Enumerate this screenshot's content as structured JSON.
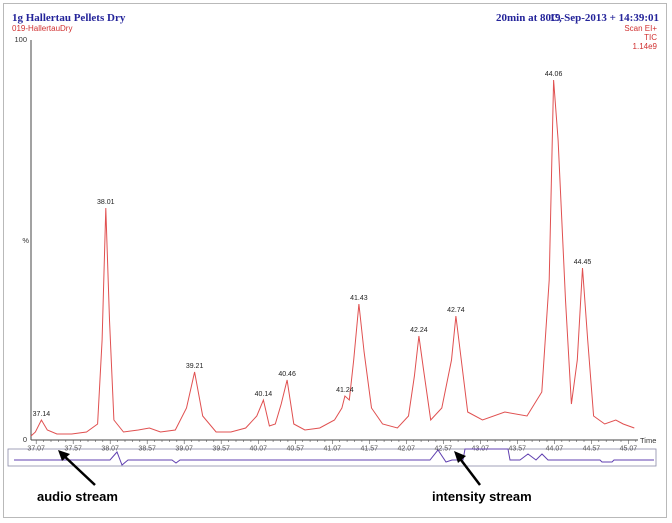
{
  "header": {
    "title": "1g Hallertau Pellets Dry",
    "method": "20min at 80C,",
    "datetime": "19-Sep-2013 + 14:39:01",
    "sample": "019-HallertauDry",
    "scan_mode": "Scan EI+",
    "trace": "TIC",
    "intensity": "1.14e9"
  },
  "axes": {
    "y_top": "100",
    "y_mid": "%",
    "y_zero": "0",
    "x_unit": "Time"
  },
  "annotations": {
    "audio": "audio stream",
    "intensity": "intensity stream"
  },
  "chart_data": {
    "type": "line",
    "xlabel": "Time",
    "ylabel": "%",
    "xlim": [
      37.0,
      45.2
    ],
    "ylim": [
      0,
      100
    ],
    "x_ticks": [
      "37.07",
      "37.57",
      "38.07",
      "38.57",
      "39.07",
      "39.57",
      "40.07",
      "40.57",
      "41.07",
      "41.57",
      "42.07",
      "42.57",
      "43.07",
      "43.57",
      "44.07",
      "44.57",
      "45.07"
    ],
    "x_tick_values": [
      37.07,
      37.57,
      38.07,
      38.57,
      39.07,
      39.57,
      40.07,
      40.57,
      41.07,
      41.57,
      42.07,
      42.57,
      43.07,
      43.57,
      44.07,
      44.57,
      45.07
    ],
    "peaks": [
      {
        "label": "37.14",
        "x": 37.14,
        "y": 5
      },
      {
        "label": "38.01",
        "x": 38.01,
        "y": 58
      },
      {
        "label": "39.21",
        "x": 39.21,
        "y": 17
      },
      {
        "label": "40.14",
        "x": 40.14,
        "y": 10
      },
      {
        "label": "40.46",
        "x": 40.46,
        "y": 15
      },
      {
        "label": "41.24",
        "x": 41.24,
        "y": 11
      },
      {
        "label": "41.43",
        "x": 41.43,
        "y": 34
      },
      {
        "label": "42.24",
        "x": 42.24,
        "y": 26
      },
      {
        "label": "42.74",
        "x": 42.74,
        "y": 31
      },
      {
        "label": "44.06",
        "x": 44.06,
        "y": 90
      },
      {
        "label": "44.45",
        "x": 44.45,
        "y": 43
      }
    ],
    "x": [
      37.0,
      37.06,
      37.14,
      37.22,
      37.35,
      37.55,
      37.75,
      37.9,
      37.96,
      38.01,
      38.06,
      38.12,
      38.25,
      38.45,
      38.6,
      38.75,
      38.95,
      39.1,
      39.21,
      39.32,
      39.5,
      39.7,
      39.9,
      40.05,
      40.14,
      40.22,
      40.3,
      40.38,
      40.46,
      40.55,
      40.7,
      40.9,
      41.1,
      41.2,
      41.24,
      41.3,
      41.36,
      41.43,
      41.5,
      41.6,
      41.75,
      41.95,
      42.1,
      42.18,
      42.24,
      42.3,
      42.4,
      42.55,
      42.68,
      42.74,
      42.8,
      42.9,
      43.1,
      43.4,
      43.7,
      43.9,
      44.0,
      44.06,
      44.12,
      44.22,
      44.3,
      44.38,
      44.45,
      44.52,
      44.6,
      44.75,
      44.9,
      45.0,
      45.15
    ],
    "y": [
      1,
      2,
      5,
      2.5,
      1.5,
      1.5,
      2,
      4,
      25,
      58,
      30,
      5,
      2,
      2.5,
      3,
      2,
      2.5,
      8,
      17,
      6,
      2,
      2,
      3,
      6,
      10,
      3.5,
      4,
      9,
      15,
      4,
      2.5,
      3,
      5,
      8,
      11,
      10,
      20,
      34,
      22,
      8,
      4,
      3,
      6,
      16,
      26,
      18,
      5,
      8,
      20,
      31,
      22,
      7,
      5,
      7,
      6,
      12,
      40,
      90,
      75,
      35,
      9,
      20,
      43,
      25,
      6,
      4,
      5,
      4,
      3
    ]
  }
}
